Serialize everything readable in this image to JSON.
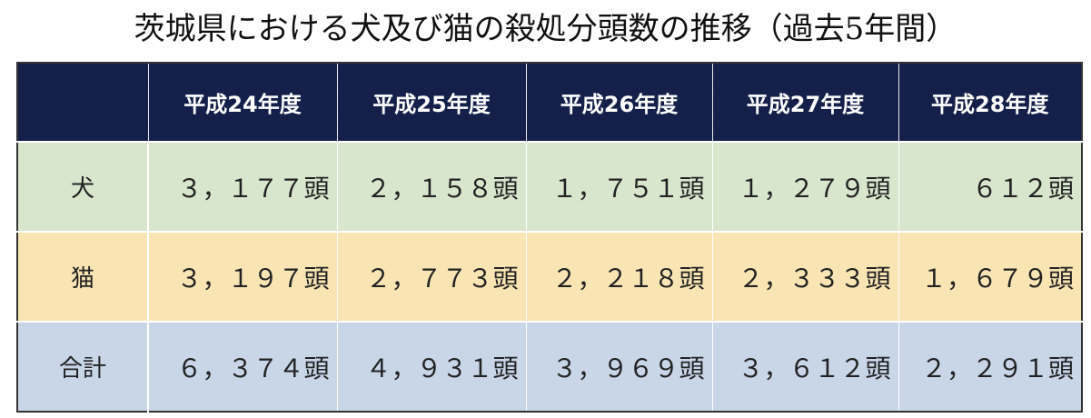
{
  "title": "茨城県における犬及び猫の殺処分頭数の推移（過去5年間）",
  "table": {
    "header": [
      "平成24年度",
      "平成25年度",
      "平成26年度",
      "平成27年度",
      "平成28年度"
    ],
    "rows": [
      {
        "label": "犬",
        "cells": [
          "３，１７７頭",
          "２，１５８頭",
          "１，７５１頭",
          "１，２７９頭",
          "６１２頭"
        ]
      },
      {
        "label": "猫",
        "cells": [
          "３，１９７頭",
          "２，７７３頭",
          "２，２１８頭",
          "２，３３３頭",
          "１，６７９頭"
        ]
      },
      {
        "label": "合計",
        "cells": [
          "６，３７４頭",
          "４，９３１頭",
          "３，９６９頭",
          "３，６１２頭",
          "２，２９１頭"
        ]
      }
    ]
  }
}
